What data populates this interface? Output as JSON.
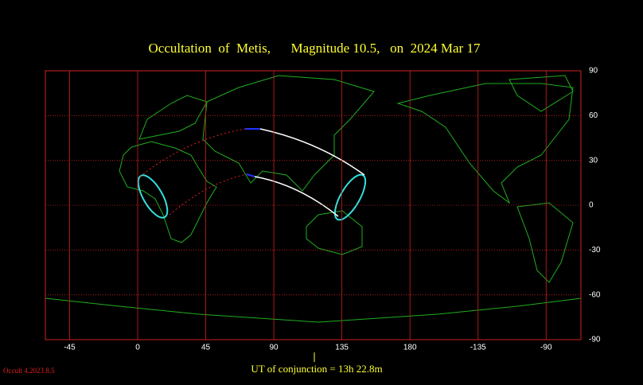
{
  "chart_data": {
    "type": "map",
    "title": "Occultation  of  Metis,      Magnitude 10.5,   on  2024 Mar 17",
    "xlim": [
      -61,
      293
    ],
    "xticks": [
      -45,
      0,
      45,
      90,
      135,
      180,
      {
        "value": 225,
        "label": "-135"
      },
      {
        "value": 270,
        "label": "-90"
      }
    ],
    "ylim": [
      -90,
      90
    ],
    "yticks": [
      90,
      60,
      30,
      0,
      -30,
      -60,
      -90
    ],
    "grid": true,
    "conjunction_label": "UT of conjunction = 13h 22.8m",
    "version": "Occult 4.2023.8.5"
  }
}
